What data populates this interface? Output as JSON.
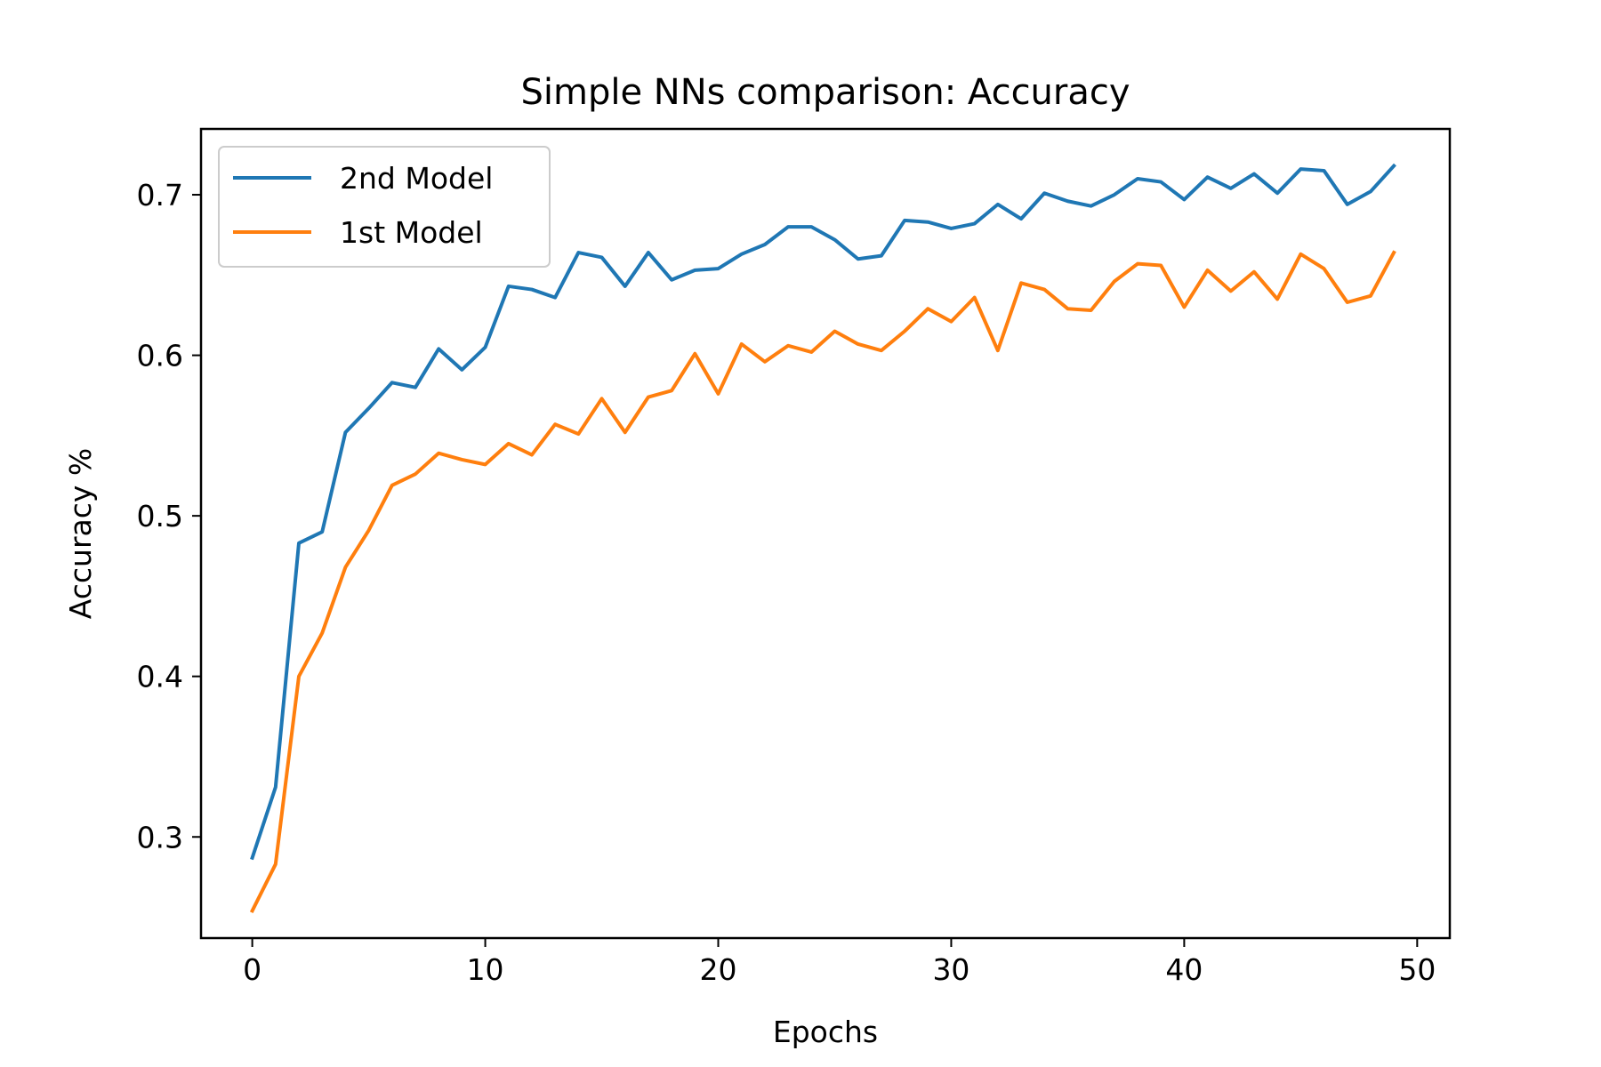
{
  "chart_data": {
    "type": "line",
    "title": "Simple NNs comparison: Accuracy",
    "xlabel": "Epochs",
    "ylabel": "Accuracy %",
    "xlim": [
      -2.2,
      51.4
    ],
    "ylim": [
      0.237,
      0.741
    ],
    "xticks": [
      0,
      10,
      20,
      30,
      40,
      50
    ],
    "xtick_labels": [
      "0",
      "10",
      "20",
      "30",
      "40",
      "50"
    ],
    "yticks": [
      0.3,
      0.4,
      0.5,
      0.6,
      0.7
    ],
    "ytick_labels": [
      "0.3",
      "0.4",
      "0.5",
      "0.6",
      "0.7"
    ],
    "grid": false,
    "legend_position": "upper-left",
    "x": [
      0,
      1,
      2,
      3,
      4,
      5,
      6,
      7,
      8,
      9,
      10,
      11,
      12,
      13,
      14,
      15,
      16,
      17,
      18,
      19,
      20,
      21,
      22,
      23,
      24,
      25,
      26,
      27,
      28,
      29,
      30,
      31,
      32,
      33,
      34,
      35,
      36,
      37,
      38,
      39,
      40,
      41,
      42,
      43,
      44,
      45,
      46,
      47,
      48,
      49
    ],
    "series": [
      {
        "name": "2nd Model",
        "color": "#1f77b4",
        "values": [
          0.287,
          0.331,
          0.483,
          0.49,
          0.552,
          0.567,
          0.583,
          0.58,
          0.604,
          0.591,
          0.605,
          0.643,
          0.641,
          0.636,
          0.664,
          0.661,
          0.643,
          0.664,
          0.647,
          0.653,
          0.654,
          0.663,
          0.669,
          0.68,
          0.68,
          0.672,
          0.66,
          0.662,
          0.684,
          0.683,
          0.679,
          0.682,
          0.694,
          0.685,
          0.701,
          0.696,
          0.693,
          0.7,
          0.71,
          0.708,
          0.697,
          0.711,
          0.704,
          0.713,
          0.701,
          0.716,
          0.715,
          0.694,
          0.702,
          0.718
        ]
      },
      {
        "name": "1st Model",
        "color": "#ff7f0e",
        "values": [
          0.254,
          0.283,
          0.4,
          0.427,
          0.468,
          0.491,
          0.519,
          0.526,
          0.539,
          0.535,
          0.532,
          0.545,
          0.538,
          0.557,
          0.551,
          0.573,
          0.552,
          0.574,
          0.578,
          0.601,
          0.576,
          0.607,
          0.596,
          0.606,
          0.602,
          0.615,
          0.607,
          0.603,
          0.615,
          0.629,
          0.621,
          0.636,
          0.603,
          0.645,
          0.641,
          0.629,
          0.628,
          0.646,
          0.657,
          0.656,
          0.63,
          0.653,
          0.64,
          0.652,
          0.635,
          0.663,
          0.654,
          0.633,
          0.637,
          0.664
        ]
      }
    ]
  }
}
